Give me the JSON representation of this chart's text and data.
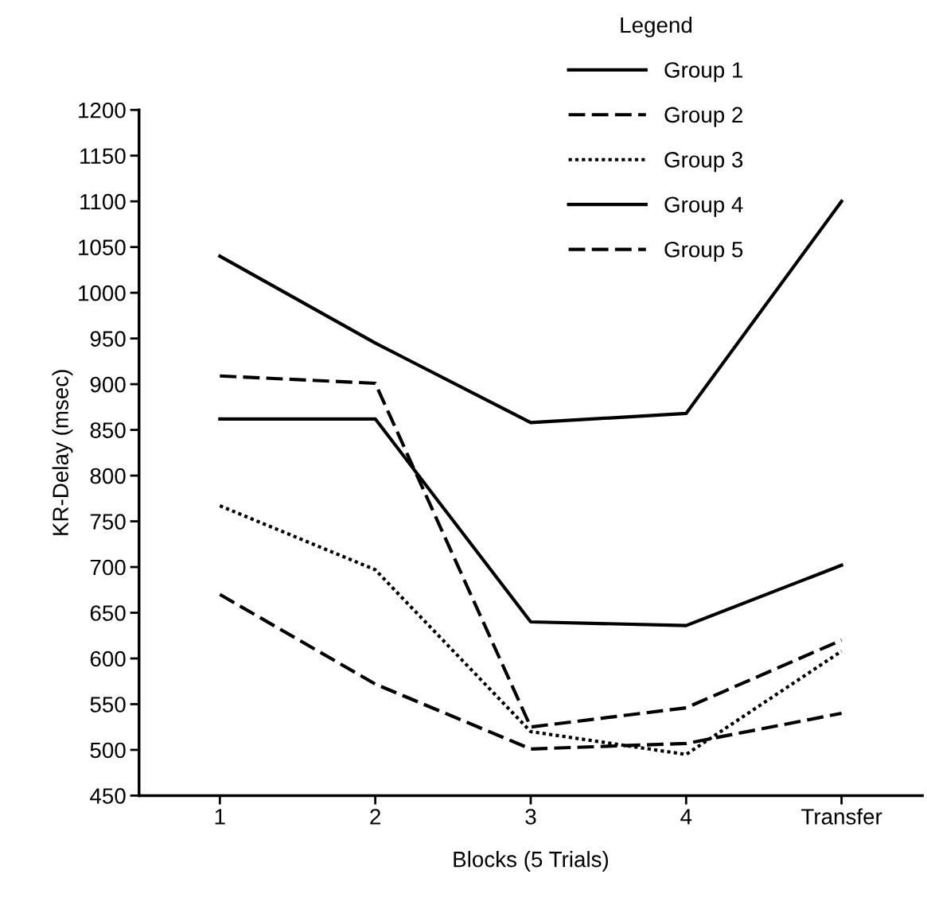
{
  "chart_data": {
    "type": "line",
    "xlabel": "Blocks (5 Trials)",
    "ylabel": "KR-Delay (msec)",
    "legend_title": "Legend",
    "legend": "top right",
    "grid": false,
    "marker": "none",
    "categories": [
      "1",
      "2",
      "3",
      "4",
      "Transfer"
    ],
    "ylim": [
      450,
      1200
    ],
    "yticks": [
      450,
      500,
      550,
      600,
      650,
      700,
      750,
      800,
      850,
      900,
      950,
      1000,
      1050,
      1100,
      1150,
      1200
    ],
    "series": [
      {
        "name": "Group 1",
        "color": "#000000",
        "line_style": "solid",
        "values": [
          1040,
          945,
          858,
          868,
          1100
        ]
      },
      {
        "name": "Group 2",
        "color": "#000000",
        "line_style": "dashed",
        "values": [
          670,
          572,
          501,
          507,
          540
        ]
      },
      {
        "name": "Group 3",
        "color": "#000000",
        "line_style": "dotted",
        "values": [
          767,
          697,
          520,
          495,
          608
        ]
      },
      {
        "name": "Group 4",
        "color": "#000000",
        "line_style": "solid",
        "values": [
          862,
          862,
          640,
          636,
          702
        ]
      },
      {
        "name": "Group 5",
        "color": "#000000",
        "line_style": "dashed",
        "values": [
          909,
          901,
          525,
          546,
          620
        ]
      }
    ]
  }
}
